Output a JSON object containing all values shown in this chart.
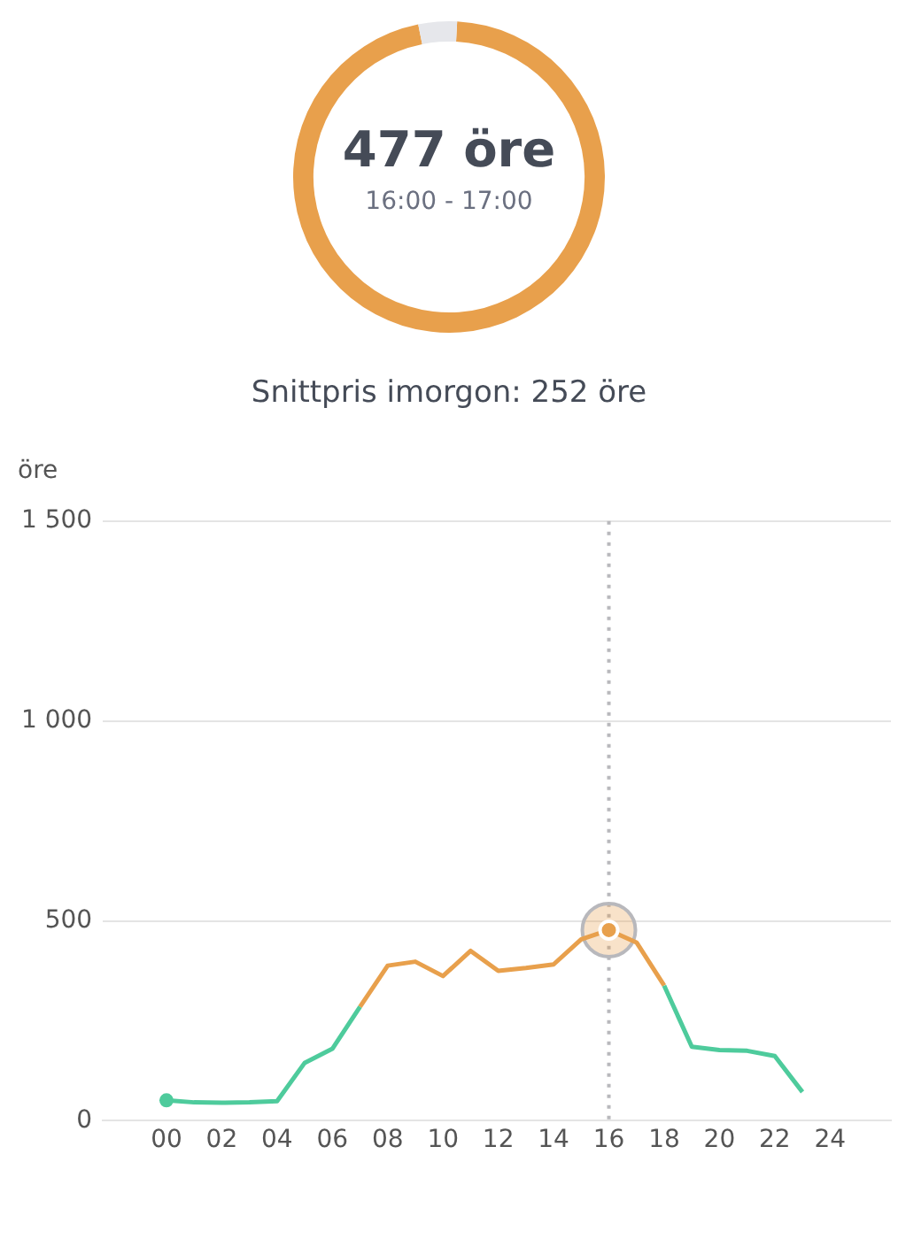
{
  "chart_data": [
    {
      "type": "donut",
      "categories": [
        null,
        null
      ],
      "values": [
        96,
        4
      ],
      "colors": [
        "#e8a04c",
        "#e6e7eb"
      ],
      "annotations": [
        "477 öre",
        "16:00 - 17:00",
        "Snittpris imorgon: 252 öre"
      ],
      "legend": false
    },
    {
      "type": "line",
      "ylabel": "öre",
      "x": [
        0,
        1,
        2,
        3,
        4,
        5,
        6,
        7,
        8,
        9,
        10,
        11,
        12,
        13,
        14,
        15,
        16,
        17,
        18,
        19,
        20,
        21,
        22,
        23
      ],
      "series": [
        {
          "color": "#4ecb9c",
          "values": [
            51,
            46,
            45,
            46,
            49,
            145,
            180,
            285,
            null,
            null,
            null,
            null,
            null,
            null,
            null,
            null,
            null,
            null,
            338,
            185,
            177,
            175,
            162,
            72
          ]
        },
        {
          "color": "#e8a04c",
          "values": [
            null,
            null,
            null,
            null,
            null,
            null,
            null,
            285,
            388,
            398,
            362,
            425,
            375,
            382,
            391,
            454,
            477,
            446,
            338,
            null,
            null,
            null,
            null,
            null
          ]
        }
      ],
      "xlim": [
        -2.3,
        26.2
      ],
      "xticks": [
        {
          "value": 0,
          "label": "00"
        },
        {
          "value": 2,
          "label": "02"
        },
        {
          "value": 4,
          "label": "04"
        },
        {
          "value": 6,
          "label": "06"
        },
        {
          "value": 8,
          "label": "08"
        },
        {
          "value": 10,
          "label": "10"
        },
        {
          "value": 12,
          "label": "12"
        },
        {
          "value": 14,
          "label": "14"
        },
        {
          "value": 16,
          "label": "16"
        },
        {
          "value": 18,
          "label": "18"
        },
        {
          "value": 20,
          "label": "20"
        },
        {
          "value": 22,
          "label": "22"
        },
        {
          "value": 24,
          "label": "24"
        }
      ],
      "ylim": [
        0,
        1500
      ],
      "yticks": [
        0,
        500,
        {
          "value": 1000,
          "label": "1 000"
        },
        {
          "value": 1500,
          "label": "1 500"
        }
      ],
      "ref_lines": [
        {
          "axis": "x",
          "value": 16,
          "color": "#b8b8bc",
          "line_style": "dotted"
        }
      ],
      "grid": "y",
      "legend": false,
      "marker": "none",
      "line_style": "solid"
    }
  ]
}
